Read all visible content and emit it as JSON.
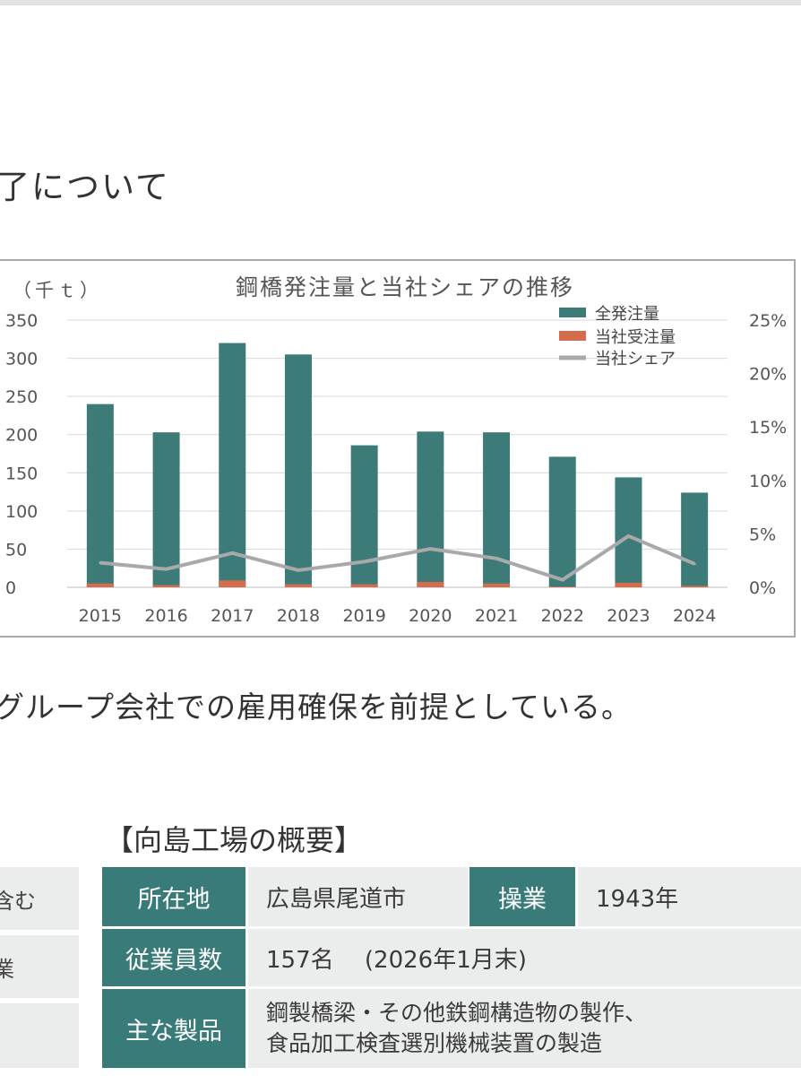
{
  "heading": "了について",
  "body_text": "グループ会社での雇用確保を前提としている。",
  "chart_data": {
    "type": "bar",
    "title": "鋼橋発注量と当社シェアの推移",
    "ylabel": "（千ｔ）",
    "categories": [
      "2015",
      "2016",
      "2017",
      "2018",
      "2019",
      "2020",
      "2021",
      "2022",
      "2023",
      "2024"
    ],
    "series": [
      {
        "name": "全発注量",
        "type": "bar",
        "color": "#3d7b79",
        "values": [
          240,
          203,
          320,
          305,
          186,
          204,
          203,
          171,
          144,
          124
        ]
      },
      {
        "name": "当社受注量",
        "type": "bar",
        "color": "#d46c4e",
        "values": [
          5,
          3,
          9,
          4,
          4,
          7,
          5,
          1,
          6,
          2
        ]
      },
      {
        "name": "当社シェア",
        "type": "line",
        "axis": "right",
        "color": "#a9a9a9",
        "values": [
          2.3,
          1.7,
          3.2,
          1.6,
          2.4,
          3.6,
          2.7,
          0.7,
          4.8,
          2.2
        ]
      }
    ],
    "ylim": [
      0,
      350
    ],
    "yticks": [
      "0",
      "50",
      "100",
      "150",
      "200",
      "250",
      "300",
      "350"
    ],
    "ylim_right": [
      0,
      25
    ],
    "yticks_right": [
      "0%",
      "5%",
      "10%",
      "15%",
      "20%",
      "25%"
    ],
    "grid": true,
    "legend_position": "top-right"
  },
  "summary": {
    "title": "【向島工場の概要】",
    "location_label": "所在地",
    "location_value": "広島県尾道市",
    "founded_label": "操業",
    "founded_value": "1943年",
    "employees_label": "従業員数",
    "employees_value": "157名　 (2026年1月末)",
    "products_label": "主な製品",
    "products_line1": "鋼製橋梁・その他鉄鋼構造物の製作、",
    "products_line2": "食品加工検査選別機械装置の製造"
  },
  "left_table": {
    "row1": "含む",
    "row2": "業"
  }
}
